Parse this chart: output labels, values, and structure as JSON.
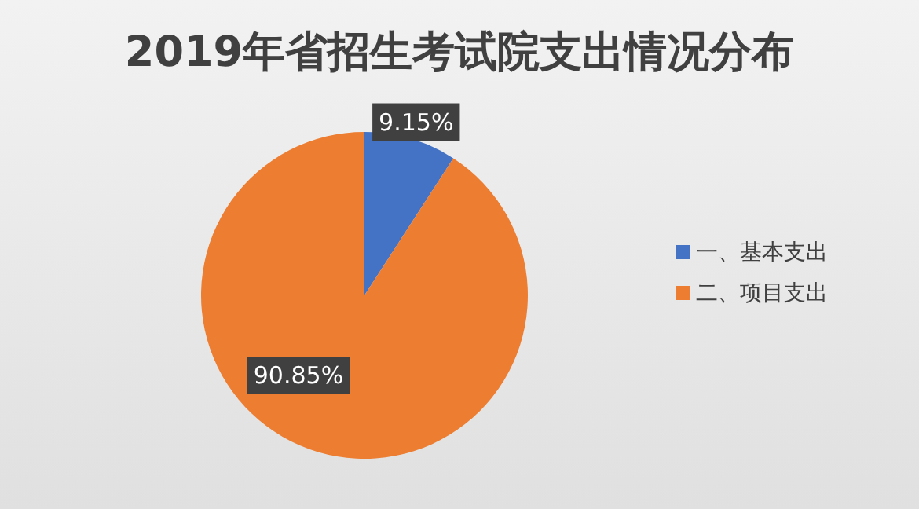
{
  "chart_data": {
    "type": "pie",
    "title": "2019年省招生考试院支出情况分布",
    "categories": [
      "一、基本支出",
      "二、项目支出"
    ],
    "values": [
      9.15,
      90.85
    ],
    "value_labels": [
      "9.15%",
      "90.85%"
    ],
    "colors": [
      "#4472c4",
      "#ed7d31"
    ],
    "legend": "right"
  }
}
